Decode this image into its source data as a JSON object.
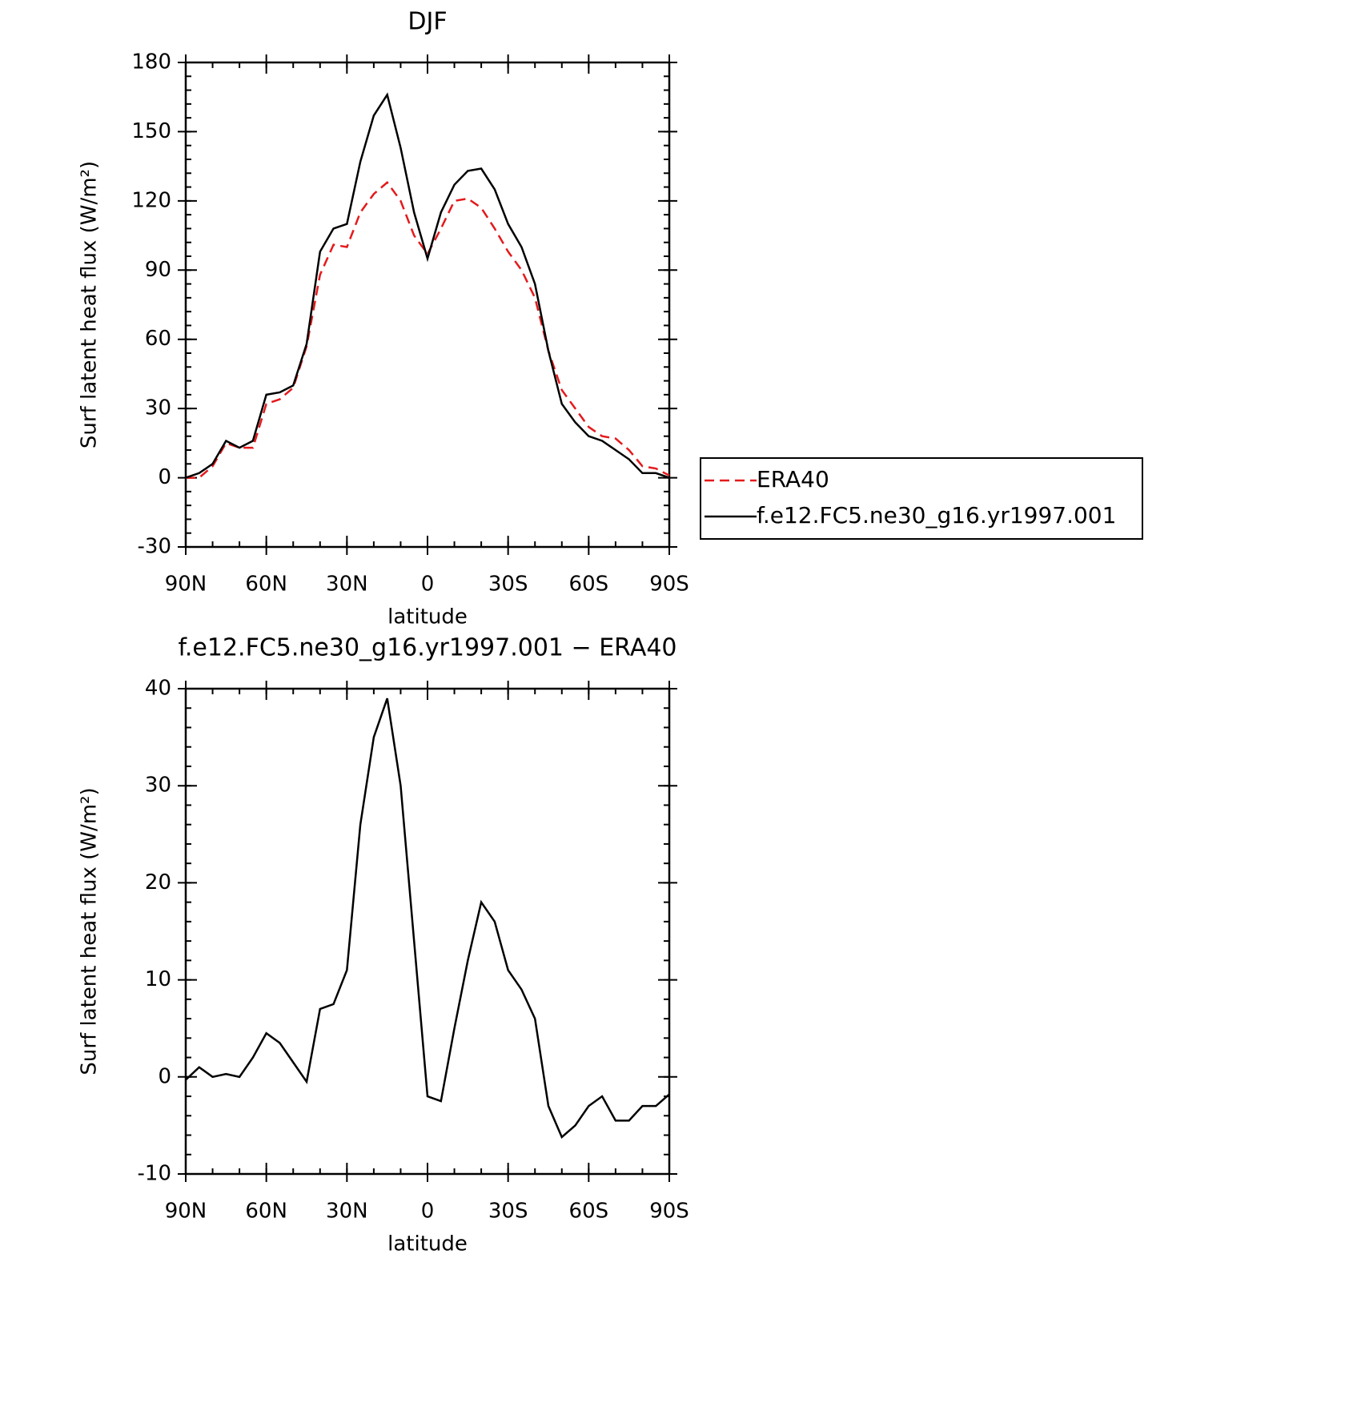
{
  "chart_data": [
    {
      "type": "line",
      "title": "DJF",
      "xlabel": "latitude",
      "ylabel": "Surf latent heat flux (W/m²)",
      "x": [
        90,
        85,
        80,
        75,
        70,
        65,
        60,
        55,
        50,
        45,
        40,
        35,
        30,
        25,
        20,
        15,
        10,
        5,
        0,
        -5,
        -10,
        -15,
        -20,
        -25,
        -30,
        -35,
        -40,
        -45,
        -50,
        -55,
        -60,
        -65,
        -70,
        -75,
        -80,
        -85,
        -90
      ],
      "xlim": [
        90,
        -90
      ],
      "xticks": [
        {
          "value": 90,
          "label": "90N"
        },
        {
          "value": 60,
          "label": "60N"
        },
        {
          "value": 30,
          "label": "30N"
        },
        0,
        {
          "value": -30,
          "label": "30S"
        },
        {
          "value": -60,
          "label": "60S"
        },
        {
          "value": -90,
          "label": "90S"
        }
      ],
      "ylim": [
        -30,
        180
      ],
      "yticks": [
        -30,
        0,
        30,
        60,
        90,
        120,
        150,
        180
      ],
      "series": [
        {
          "name": "ERA40",
          "color": "#e41a1c",
          "dash": true,
          "values": [
            0,
            0,
            5,
            15,
            13,
            13,
            32,
            34,
            39,
            57,
            88,
            101,
            100,
            115,
            123,
            128,
            120,
            105,
            97,
            108,
            120,
            121,
            117,
            108,
            98,
            90,
            78,
            55,
            38,
            30,
            22,
            18,
            17,
            12,
            5,
            4,
            1
          ]
        },
        {
          "name": "f.e12.FC5.ne30_g16.yr1997.001",
          "color": "#000000",
          "dash": false,
          "values": [
            0,
            2,
            6,
            16,
            13,
            16,
            36,
            37,
            40,
            58,
            98,
            108,
            110,
            137,
            157,
            166,
            143,
            115,
            95,
            115,
            127,
            133,
            134,
            125,
            110,
            100,
            84,
            55,
            32,
            24,
            18,
            16,
            12,
            8,
            2,
            2,
            0
          ]
        }
      ]
    },
    {
      "type": "line",
      "title": "f.e12.FC5.ne30_g16.yr1997.001 − ERA40",
      "xlabel": "latitude",
      "ylabel": "Surf latent heat flux (W/m²)",
      "x": [
        90,
        85,
        80,
        75,
        70,
        65,
        60,
        55,
        50,
        45,
        40,
        35,
        30,
        25,
        20,
        15,
        10,
        5,
        0,
        -5,
        -10,
        -15,
        -20,
        -25,
        -30,
        -35,
        -40,
        -45,
        -50,
        -55,
        -60,
        -65,
        -70,
        -75,
        -80,
        -85,
        -90
      ],
      "xlim": [
        90,
        -90
      ],
      "xticks": [
        {
          "value": 90,
          "label": "90N"
        },
        {
          "value": 60,
          "label": "60N"
        },
        {
          "value": 30,
          "label": "30N"
        },
        0,
        {
          "value": -30,
          "label": "30S"
        },
        {
          "value": -60,
          "label": "60S"
        },
        {
          "value": -90,
          "label": "90S"
        }
      ],
      "ylim": [
        -10,
        40
      ],
      "yticks": [
        -10,
        0,
        10,
        20,
        30,
        40
      ],
      "series": [
        {
          "color": "#000000",
          "dash": false,
          "values": [
            -0.3,
            1,
            0,
            0.3,
            0,
            2,
            4.5,
            3.5,
            1.5,
            -0.5,
            7,
            7.5,
            11,
            26,
            35,
            39,
            30,
            14,
            -2,
            -2.5,
            5,
            12,
            18,
            16,
            11,
            9,
            6,
            -3,
            -6.2,
            -5,
            -3,
            -2,
            -4.5,
            -4.5,
            -3,
            -3,
            -1.8
          ]
        }
      ]
    }
  ]
}
